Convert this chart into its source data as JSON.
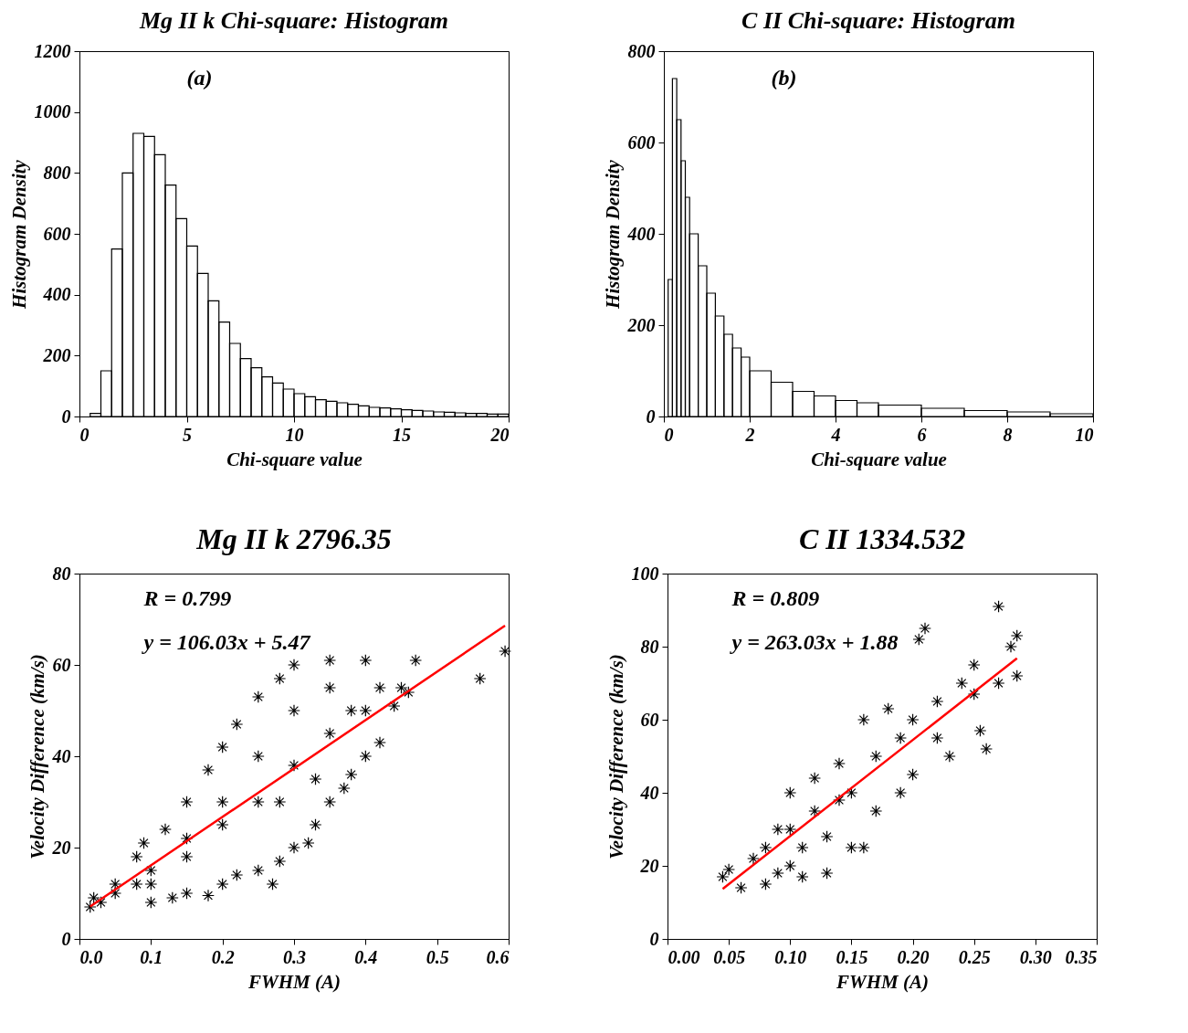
{
  "chart_data": [
    {
      "type": "histogram",
      "title": "Mg II k Chi-square: Histogram",
      "xlabel": "Chi-square value",
      "ylabel": "Histogram Density",
      "annotations": [
        "(a)"
      ],
      "color": "#000000",
      "bins": [
        0.5,
        1,
        1.5,
        2,
        2.5,
        3,
        3.5,
        4,
        4.5,
        5,
        5.5,
        6,
        6.5,
        7,
        7.5,
        8,
        8.5,
        9,
        9.5,
        10,
        10.5,
        11,
        11.5,
        12,
        12.5,
        13,
        13.5,
        14,
        14.5,
        15,
        15.5,
        16,
        16.5,
        17,
        17.5,
        18,
        18.5,
        19,
        19.5,
        20
      ],
      "values": [
        10,
        150,
        550,
        800,
        930,
        920,
        860,
        760,
        650,
        560,
        470,
        380,
        310,
        240,
        190,
        160,
        130,
        110,
        90,
        75,
        65,
        55,
        50,
        45,
        40,
        35,
        30,
        28,
        25,
        22,
        20,
        18,
        15,
        14,
        12,
        10,
        10,
        8,
        8
      ],
      "xlim": [
        0,
        20
      ],
      "xticks": [
        0,
        5,
        10,
        15,
        20
      ],
      "ylim": [
        0,
        1200
      ],
      "yticks": [
        0,
        200,
        400,
        600,
        800,
        1000,
        1200
      ]
    },
    {
      "type": "histogram",
      "title": "C II Chi-square: Histogram",
      "xlabel": "Chi-square value",
      "ylabel": "Histogram Density",
      "annotations": [
        "(b)"
      ],
      "color": "#000000",
      "bins": [
        0.1,
        0.2,
        0.3,
        0.4,
        0.5,
        0.6,
        0.8,
        1,
        1.2,
        1.4,
        1.6,
        1.8,
        2,
        2.5,
        3,
        3.5,
        4,
        4.5,
        5,
        6,
        7,
        8,
        9,
        10
      ],
      "values": [
        300,
        740,
        650,
        560,
        480,
        400,
        330,
        270,
        220,
        180,
        150,
        130,
        100,
        75,
        55,
        45,
        35,
        30,
        25,
        18,
        13,
        10,
        6
      ],
      "xlim": [
        0,
        10
      ],
      "xticks": [
        0,
        2,
        4,
        6,
        8,
        10
      ],
      "ylim": [
        0,
        800
      ],
      "yticks": [
        0,
        200,
        400,
        600,
        800
      ]
    },
    {
      "type": "scatter",
      "title": "Mg II k 2796.35",
      "xlabel": "FWHM (A)",
      "ylabel": "Velocity Difference (km/s)",
      "annotations": [
        "R = 0.799",
        "y = 106.03x + 5.47"
      ],
      "series": [
        {
          "type": "scatter",
          "marker": "cross",
          "color": "#000000",
          "x": [
            0.015,
            0.03,
            0.05,
            0.08,
            0.1,
            0.13,
            0.15,
            0.18,
            0.2,
            0.22,
            0.25,
            0.27,
            0.28,
            0.3,
            0.32,
            0.33,
            0.35,
            0.37,
            0.38,
            0.4,
            0.42,
            0.44,
            0.45,
            0.47,
            0.46,
            0.56,
            0.595,
            0.02,
            0.05,
            0.08,
            0.09,
            0.12,
            0.15,
            0.18,
            0.2,
            0.22,
            0.25,
            0.28,
            0.3,
            0.35,
            0.4,
            0.1,
            0.15,
            0.2,
            0.25,
            0.3,
            0.35,
            0.2,
            0.25,
            0.3,
            0.35,
            0.15,
            0.1,
            0.28,
            0.33,
            0.38,
            0.4,
            0.42
          ],
          "values": [
            7,
            8,
            10,
            12,
            8,
            9,
            10,
            9.5,
            12,
            14,
            15,
            12,
            17,
            20,
            21,
            25,
            30,
            33,
            36,
            40,
            43,
            51,
            55,
            61,
            54,
            57,
            63,
            9,
            12,
            18,
            21,
            24,
            30,
            37,
            42,
            47,
            53,
            57,
            60,
            61,
            61,
            15,
            18,
            25,
            30,
            38,
            45,
            30,
            40,
            50,
            55,
            22,
            12,
            30,
            35,
            50,
            50,
            55
          ]
        },
        {
          "type": "line",
          "color": "#ff0000",
          "x": [
            0.015,
            0.595
          ],
          "values": [
            7.1,
            68.6
          ]
        }
      ],
      "xlim": [
        0,
        0.6
      ],
      "xticks": [
        {
          "value": 0,
          "label": "0.0"
        },
        0.1,
        0.2,
        0.3,
        0.4,
        0.5,
        0.6
      ],
      "ylim": [
        0,
        80
      ],
      "yticks": [
        0,
        20,
        40,
        60,
        80
      ]
    },
    {
      "type": "scatter",
      "title": "C II 1334.532",
      "xlabel": "FWHM (A)",
      "ylabel": "Velocity Difference (km/s)",
      "annotations": [
        "R = 0.809",
        "y = 263.03x + 1.88"
      ],
      "series": [
        {
          "type": "scatter",
          "marker": "cross",
          "color": "#000000",
          "x": [
            0.045,
            0.05,
            0.06,
            0.07,
            0.08,
            0.09,
            0.1,
            0.11,
            0.12,
            0.13,
            0.14,
            0.15,
            0.16,
            0.17,
            0.18,
            0.19,
            0.2,
            0.2,
            0.21,
            0.205,
            0.22,
            0.23,
            0.24,
            0.25,
            0.255,
            0.26,
            0.27,
            0.27,
            0.28,
            0.285,
            0.285,
            0.1,
            0.12,
            0.14,
            0.13,
            0.1,
            0.15,
            0.16,
            0.17,
            0.19,
            0.22,
            0.25,
            0.08,
            0.11,
            0.09
          ],
          "values": [
            17,
            19,
            14,
            22,
            15,
            30,
            40,
            17,
            44,
            18,
            48,
            25,
            25,
            50,
            63,
            40,
            60,
            45,
            85,
            82,
            55,
            50,
            70,
            67,
            57,
            52,
            91,
            70,
            80,
            83,
            72,
            30,
            35,
            38,
            28,
            20,
            40,
            60,
            35,
            55,
            65,
            75,
            25,
            25,
            18
          ]
        },
        {
          "type": "line",
          "color": "#ff0000",
          "x": [
            0.045,
            0.285
          ],
          "values": [
            13.7,
            76.8
          ]
        }
      ],
      "xlim": [
        0,
        0.35
      ],
      "xticks": [
        {
          "value": 0,
          "label": "0.00"
        },
        0.05,
        {
          "value": 0.1,
          "label": "0.10"
        },
        0.15,
        {
          "value": 0.2,
          "label": "0.20"
        },
        0.25,
        {
          "value": 0.3,
          "label": "0.30"
        },
        0.35
      ],
      "ylim": [
        0,
        100
      ],
      "yticks": [
        0,
        20,
        40,
        60,
        80,
        100
      ]
    }
  ]
}
